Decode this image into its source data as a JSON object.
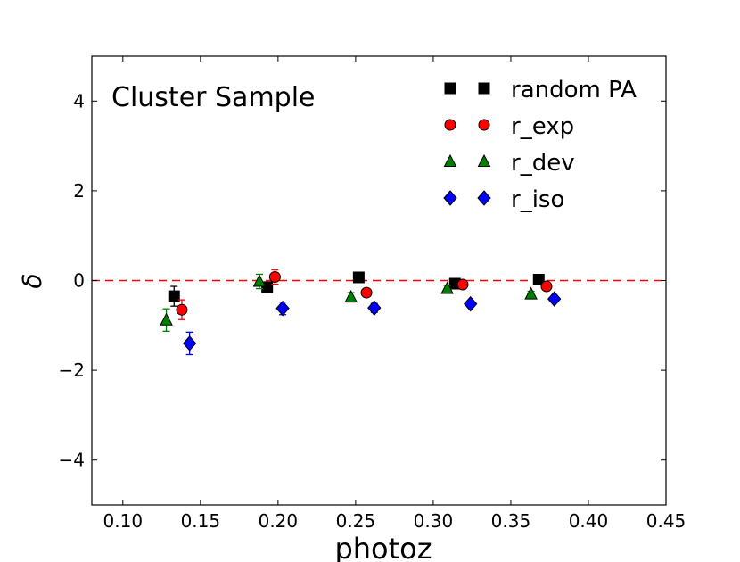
{
  "chart_data": {
    "type": "scatter",
    "title": "",
    "annotation": "Cluster Sample",
    "xlabel": "photoz",
    "ylabel": "δ",
    "xlim": [
      0.08,
      0.45
    ],
    "ylim": [
      -5,
      5
    ],
    "xticks": [
      0.1,
      0.15,
      0.2,
      0.25,
      0.3,
      0.35,
      0.4,
      0.45
    ],
    "xtick_labels": [
      "0.10",
      "0.15",
      "0.20",
      "0.25",
      "0.30",
      "0.35",
      "0.40",
      "0.45"
    ],
    "yticks": [
      -4,
      -2,
      0,
      2,
      4
    ],
    "ytick_labels": [
      "−4",
      "−2",
      "0",
      "2",
      "4"
    ],
    "reference_line": {
      "y": 0,
      "style": "dashed",
      "color": "#ff0000"
    },
    "legend_position": "top-right",
    "series": [
      {
        "name": "random PA",
        "marker": "square",
        "color": "#000000",
        "points": [
          {
            "x": 0.133,
            "y": -0.35,
            "err": 0.22
          },
          {
            "x": 0.193,
            "y": -0.15,
            "err": 0.12
          },
          {
            "x": 0.252,
            "y": 0.07,
            "err": 0.06
          },
          {
            "x": 0.314,
            "y": -0.07,
            "err": 0.06
          },
          {
            "x": 0.368,
            "y": 0.02,
            "err": 0.06
          }
        ]
      },
      {
        "name": "r_exp",
        "marker": "circle",
        "color": "#ff0000",
        "points": [
          {
            "x": 0.138,
            "y": -0.65,
            "err": 0.22
          },
          {
            "x": 0.198,
            "y": 0.08,
            "err": 0.16
          },
          {
            "x": 0.257,
            "y": -0.27,
            "err": 0.08
          },
          {
            "x": 0.319,
            "y": -0.09,
            "err": 0.06
          },
          {
            "x": 0.373,
            "y": -0.13,
            "err": 0.07
          }
        ]
      },
      {
        "name": "r_dev",
        "marker": "triangle",
        "color": "#008000",
        "points": [
          {
            "x": 0.128,
            "y": -0.88,
            "err": 0.25
          },
          {
            "x": 0.188,
            "y": -0.02,
            "err": 0.16
          },
          {
            "x": 0.247,
            "y": -0.37,
            "err": 0.1
          },
          {
            "x": 0.309,
            "y": -0.18,
            "err": 0.07
          },
          {
            "x": 0.363,
            "y": -0.3,
            "err": 0.06
          }
        ]
      },
      {
        "name": "r_iso",
        "marker": "diamond",
        "color": "#0000ff",
        "points": [
          {
            "x": 0.143,
            "y": -1.4,
            "err": 0.25
          },
          {
            "x": 0.203,
            "y": -0.62,
            "err": 0.14
          },
          {
            "x": 0.262,
            "y": -0.61,
            "err": 0.1
          },
          {
            "x": 0.324,
            "y": -0.52,
            "err": 0.07
          },
          {
            "x": 0.378,
            "y": -0.41,
            "err": 0.07
          }
        ]
      }
    ]
  }
}
